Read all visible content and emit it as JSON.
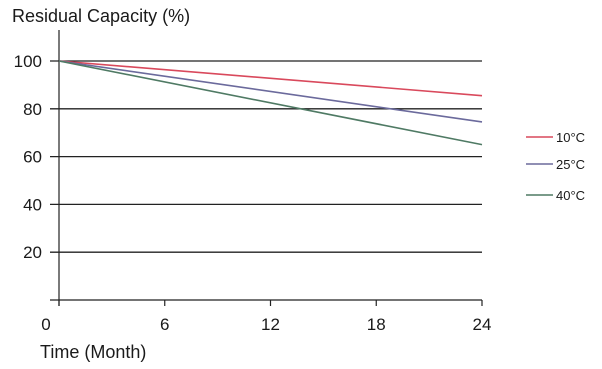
{
  "chart_data": {
    "type": "line",
    "ylabel": "Residual Capacity (%)",
    "xlabel": "Time (Month)",
    "x_ticks": [
      0,
      6,
      12,
      18,
      24
    ],
    "y_ticks": [
      20,
      40,
      60,
      80,
      100
    ],
    "xlim": [
      0,
      24
    ],
    "ylim": [
      0,
      100
    ],
    "grid": "horizontal",
    "legend_position": "right",
    "series": [
      {
        "name": "10°C",
        "color": "#d9495c",
        "points": [
          [
            0,
            100
          ],
          [
            24,
            85.5
          ]
        ]
      },
      {
        "name": "25°C",
        "color": "#6b6a9c",
        "points": [
          [
            0,
            100
          ],
          [
            24,
            74.5
          ]
        ]
      },
      {
        "name": "40°C",
        "color": "#4f7a64",
        "points": [
          [
            0,
            100
          ],
          [
            24,
            65
          ]
        ]
      }
    ]
  }
}
